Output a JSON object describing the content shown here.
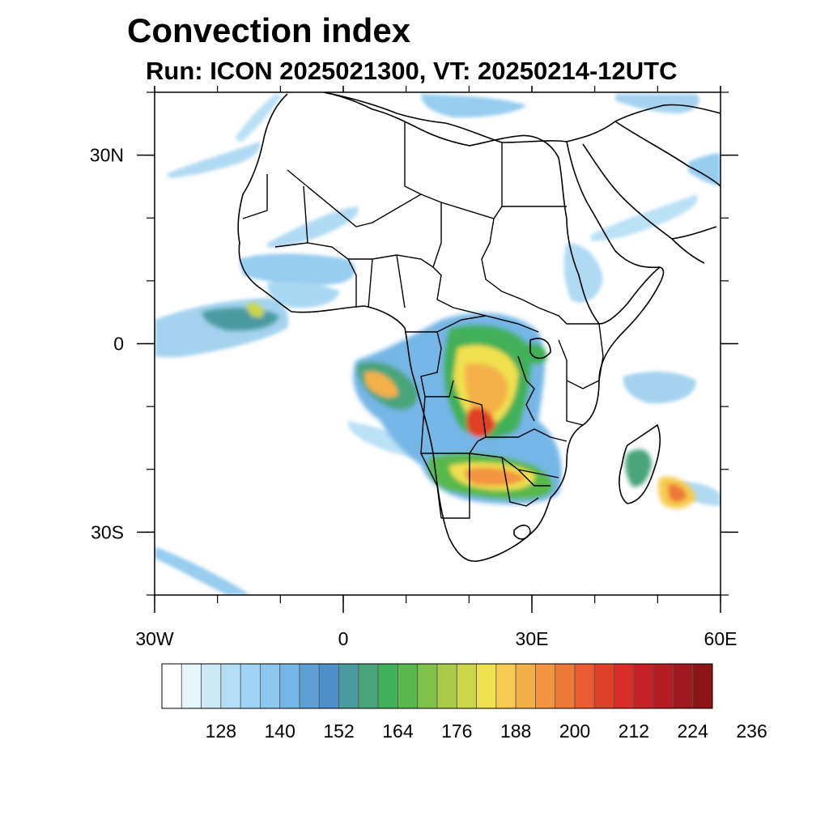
{
  "title": "Convection index",
  "subtitle": "Run: ICON 2025021300,  VT: 20250214-12UTC",
  "map": {
    "region": "Africa",
    "lon_range": [
      -30,
      60
    ],
    "lat_range": [
      -40,
      40
    ],
    "x_ticks": [
      {
        "value": -30,
        "label": "30W"
      },
      {
        "value": 0,
        "label": "0"
      },
      {
        "value": 30,
        "label": "30E"
      },
      {
        "value": 60,
        "label": "60E"
      }
    ],
    "y_ticks": [
      {
        "value": 30,
        "label": "30N"
      },
      {
        "value": 0,
        "label": "0"
      },
      {
        "value": -30,
        "label": "30S"
      }
    ],
    "minor_x_step": 10,
    "minor_y_step": 10
  },
  "colorbar": {
    "levels_labeled": [
      "128",
      "140",
      "152",
      "164",
      "176",
      "188",
      "200",
      "212",
      "224",
      "236"
    ],
    "colors": [
      "#ffffff",
      "#e6f4fb",
      "#cde9f8",
      "#b4def5",
      "#a0d4f2",
      "#8cc8ee",
      "#76b6e6",
      "#5f9fd6",
      "#4e8fca",
      "#4a9aa0",
      "#48a47a",
      "#42b058",
      "#58b84c",
      "#80c24a",
      "#a8cc48",
      "#ccd648",
      "#f0e050",
      "#f6cc50",
      "#f4b048",
      "#f29440",
      "#ee7838",
      "#ea5c30",
      "#e04028",
      "#d82c28",
      "#c82028",
      "#b41c24",
      "#a01820",
      "#8c1414"
    ]
  }
}
